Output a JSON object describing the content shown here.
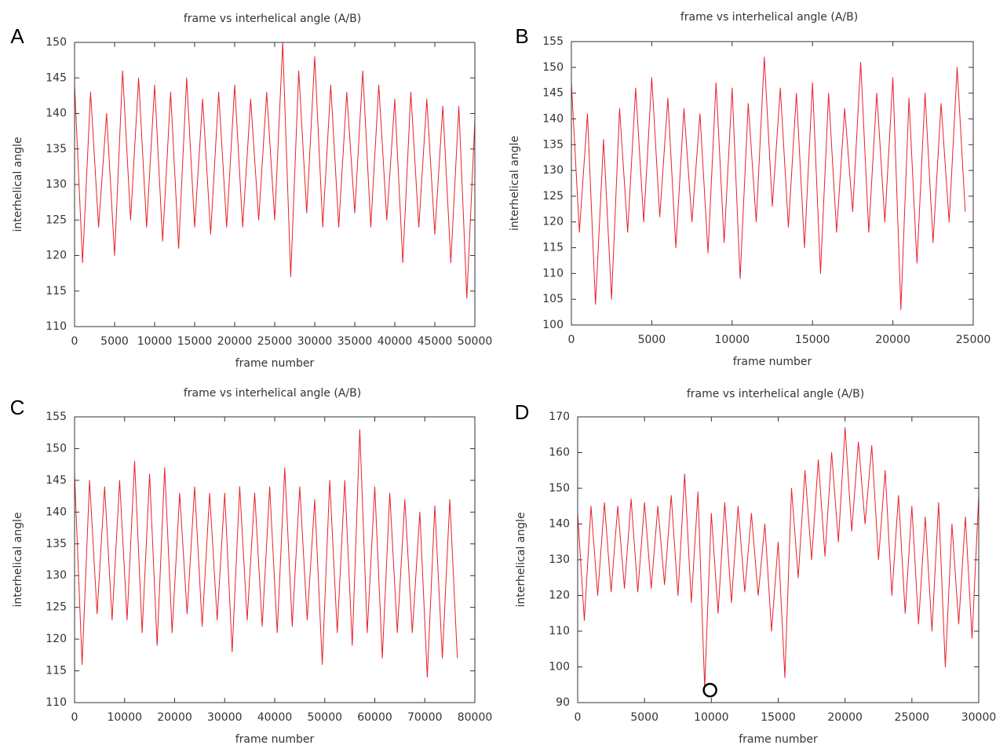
{
  "chart_data": [
    {
      "type": "line",
      "panel": "A",
      "title": "frame vs interhelical angle (A/B)",
      "xlabel": "frame number",
      "ylabel": "interhelical angle",
      "color": "#e8202a",
      "x": [
        0,
        1000,
        2000,
        3000,
        4000,
        5000,
        6000,
        7000,
        8000,
        9000,
        10000,
        11000,
        12000,
        13000,
        14000,
        15000,
        16000,
        17000,
        18000,
        19000,
        20000,
        21000,
        22000,
        23000,
        24000,
        25000,
        26000,
        27000,
        28000,
        29000,
        30000,
        31000,
        32000,
        33000,
        34000,
        35000,
        36000,
        37000,
        38000,
        39000,
        40000,
        41000,
        42000,
        43000,
        44000,
        45000,
        46000,
        47000,
        48000,
        49000,
        50000
      ],
      "values": [
        144,
        119,
        143,
        124,
        140,
        120,
        146,
        125,
        145,
        124,
        144,
        122,
        143,
        121,
        145,
        124,
        142,
        123,
        143,
        124,
        144,
        124,
        142,
        125,
        143,
        125,
        150,
        117,
        146,
        126,
        148,
        124,
        144,
        124,
        143,
        126,
        146,
        124,
        144,
        125,
        142,
        119,
        143,
        124,
        142,
        123,
        141,
        119,
        141,
        114,
        139
      ],
      "xlim": [
        0,
        50000
      ],
      "ylim": [
        110,
        150
      ],
      "xticks": [
        0,
        5000,
        10000,
        15000,
        20000,
        25000,
        30000,
        35000,
        40000,
        45000,
        50000
      ],
      "yticks": [
        110,
        115,
        120,
        125,
        130,
        135,
        140,
        145,
        150
      ]
    },
    {
      "type": "line",
      "panel": "B",
      "title": "frame vs interhelical angle (A/B)",
      "xlabel": "frame number",
      "ylabel": "interhelical angle",
      "color": "#e8202a",
      "x": [
        0,
        500,
        1000,
        1500,
        2000,
        2500,
        3000,
        3500,
        4000,
        4500,
        5000,
        5500,
        6000,
        6500,
        7000,
        7500,
        8000,
        8500,
        9000,
        9500,
        10000,
        10500,
        11000,
        11500,
        12000,
        12500,
        13000,
        13500,
        14000,
        14500,
        15000,
        15500,
        16000,
        16500,
        17000,
        17500,
        18000,
        18500,
        19000,
        19500,
        20000,
        20500,
        21000,
        21500,
        22000,
        22500,
        23000,
        23500,
        24000,
        24500
      ],
      "values": [
        147,
        118,
        141,
        104,
        136,
        105,
        142,
        118,
        146,
        120,
        148,
        121,
        144,
        115,
        142,
        120,
        141,
        114,
        147,
        116,
        146,
        109,
        143,
        120,
        152,
        123,
        146,
        119,
        145,
        115,
        147,
        110,
        145,
        118,
        142,
        122,
        151,
        118,
        145,
        120,
        148,
        103,
        144,
        112,
        145,
        116,
        143,
        120,
        150,
        122
      ],
      "xlim": [
        0,
        25000
      ],
      "ylim": [
        100,
        155
      ],
      "xticks": [
        0,
        5000,
        10000,
        15000,
        20000,
        25000
      ],
      "yticks": [
        100,
        105,
        110,
        115,
        120,
        125,
        130,
        135,
        140,
        145,
        150,
        155
      ]
    },
    {
      "type": "line",
      "panel": "C",
      "title": "frame vs interhelical angle (A/B)",
      "xlabel": "frame number",
      "ylabel": "interhelical angle",
      "color": "#e8202a",
      "x": [
        0,
        1500,
        3000,
        4500,
        6000,
        7500,
        9000,
        10500,
        12000,
        13500,
        15000,
        16500,
        18000,
        19500,
        21000,
        22500,
        24000,
        25500,
        27000,
        28500,
        30000,
        31500,
        33000,
        34500,
        36000,
        37500,
        39000,
        40500,
        42000,
        43500,
        45000,
        46500,
        48000,
        49500,
        51000,
        52500,
        54000,
        55500,
        57000,
        58500,
        60000,
        61500,
        63000,
        64500,
        66000,
        67500,
        69000,
        70500,
        72000,
        73500,
        75000,
        76500
      ],
      "values": [
        146,
        116,
        145,
        124,
        144,
        123,
        145,
        123,
        148,
        121,
        146,
        119,
        147,
        121,
        143,
        124,
        144,
        122,
        143,
        123,
        143,
        118,
        144,
        123,
        143,
        122,
        144,
        121,
        147,
        122,
        144,
        123,
        142,
        116,
        145,
        121,
        145,
        119,
        153,
        121,
        144,
        117,
        143,
        121,
        142,
        121,
        140,
        114,
        141,
        117,
        142,
        117
      ],
      "xlim": [
        0,
        80000
      ],
      "ylim": [
        110,
        155
      ],
      "xticks": [
        0,
        10000,
        20000,
        30000,
        40000,
        50000,
        60000,
        70000,
        80000
      ],
      "yticks": [
        110,
        115,
        120,
        125,
        130,
        135,
        140,
        145,
        150,
        155
      ]
    },
    {
      "type": "line",
      "panel": "D",
      "title": "frame vs interhelical angle (A/B)",
      "xlabel": "frame number",
      "ylabel": "interhelical angle",
      "color": "#e8202a",
      "x": [
        0,
        500,
        1000,
        1500,
        2000,
        2500,
        3000,
        3500,
        4000,
        4500,
        5000,
        5500,
        6000,
        6500,
        7000,
        7500,
        8000,
        8500,
        9000,
        9500,
        10000,
        10500,
        11000,
        11500,
        12000,
        12500,
        13000,
        13500,
        14000,
        14500,
        15000,
        15500,
        16000,
        16500,
        17000,
        17500,
        18000,
        18500,
        19000,
        19500,
        20000,
        20500,
        21000,
        21500,
        22000,
        22500,
        23000,
        23500,
        24000,
        24500,
        25000,
        25500,
        26000,
        26500,
        27000,
        27500,
        28000,
        28500,
        29000,
        29500,
        30000
      ],
      "values": [
        143,
        113,
        145,
        120,
        146,
        121,
        145,
        122,
        147,
        121,
        146,
        122,
        145,
        123,
        148,
        120,
        154,
        118,
        149,
        94,
        143,
        115,
        146,
        118,
        145,
        121,
        143,
        120,
        140,
        110,
        135,
        97,
        150,
        125,
        155,
        130,
        158,
        131,
        160,
        135,
        167,
        138,
        163,
        140,
        162,
        130,
        155,
        120,
        148,
        115,
        145,
        112,
        142,
        110,
        146,
        100,
        140,
        112,
        142,
        108,
        148
      ],
      "highlight": {
        "x": 9900,
        "y": 93.5
      },
      "xlim": [
        0,
        30000
      ],
      "ylim": [
        90,
        170
      ],
      "xticks": [
        0,
        5000,
        10000,
        15000,
        20000,
        25000,
        30000
      ],
      "yticks": [
        90,
        100,
        110,
        120,
        130,
        140,
        150,
        160,
        170
      ]
    }
  ]
}
